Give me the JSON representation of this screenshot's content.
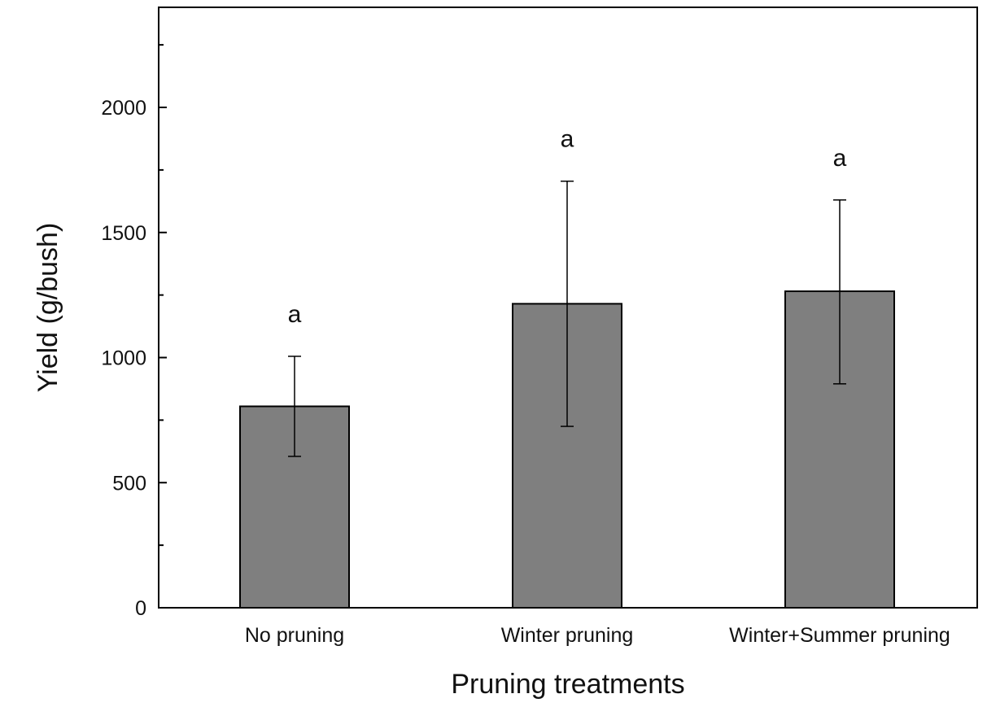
{
  "chart_data": {
    "type": "bar",
    "title": "",
    "xlabel": "Pruning treatments",
    "ylabel": "Yield (g/bush)",
    "ylim": [
      0,
      2400
    ],
    "yticks": [
      0,
      500,
      1000,
      1500,
      2000
    ],
    "ytick_labels": [
      "0",
      "500",
      "1000",
      "1500",
      "2000"
    ],
    "categories": [
      "No pruning",
      "Winter pruning",
      "Winter+Summer pruning"
    ],
    "values": [
      805,
      1215,
      1265
    ],
    "error_upper": [
      1005,
      1705,
      1630
    ],
    "error_lower": [
      605,
      725,
      895
    ],
    "significance_labels": [
      "a",
      "a",
      "a"
    ],
    "bar_color": "#7f7f7f",
    "grid": false,
    "legend": "none"
  }
}
